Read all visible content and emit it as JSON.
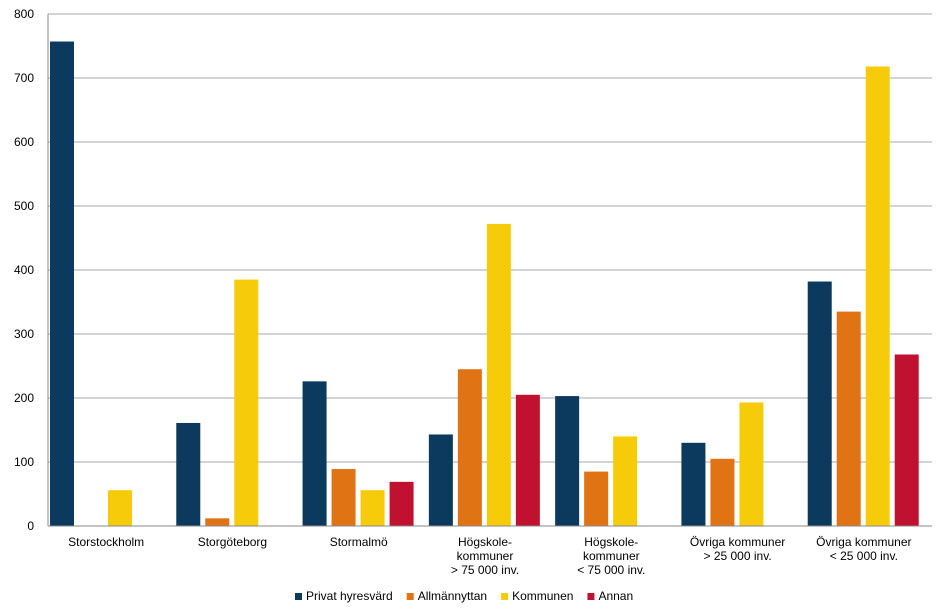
{
  "chart_data": {
    "type": "bar",
    "categories": [
      [
        "Storstockholm"
      ],
      [
        "Storgöteborg"
      ],
      [
        "Stormalmö"
      ],
      [
        "Högskole-",
        "kommuner",
        "> 75 000 inv."
      ],
      [
        "Högskole-",
        "kommuner",
        "< 75 000 inv."
      ],
      [
        "Övriga kommuner",
        "> 25 000 inv."
      ],
      [
        "Övriga kommuner",
        "< 25 000 inv."
      ]
    ],
    "series": [
      {
        "name": "Privat hyresvärd",
        "color": "#0b3a5e",
        "values": [
          757,
          161,
          226,
          143,
          203,
          130,
          382
        ]
      },
      {
        "name": "Allmännyttan",
        "color": "#e07314",
        "values": [
          0,
          12,
          89,
          245,
          85,
          105,
          335
        ]
      },
      {
        "name": "Kommunen",
        "color": "#f6cc0a",
        "values": [
          56,
          385,
          56,
          472,
          140,
          193,
          718
        ]
      },
      {
        "name": "Annan",
        "color": "#c01230",
        "values": [
          0,
          0,
          69,
          205,
          0,
          0,
          268
        ]
      }
    ],
    "ylim": [
      0,
      800
    ],
    "yticks": [
      0,
      100,
      200,
      300,
      400,
      500,
      600,
      700,
      800
    ],
    "grid": true,
    "legend_position": "bottom"
  }
}
